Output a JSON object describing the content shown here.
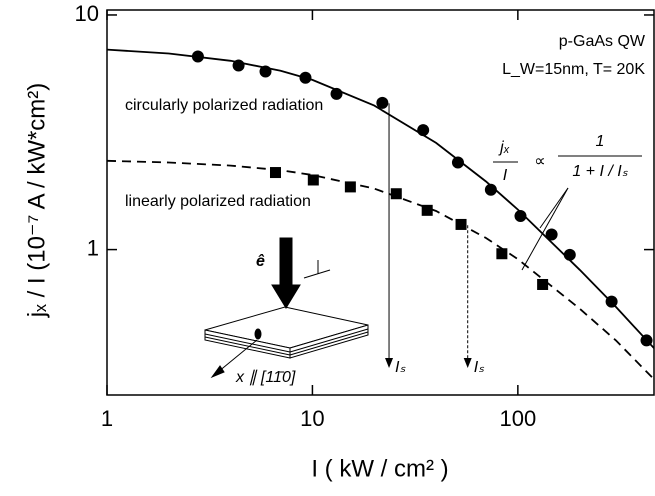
{
  "chart_data": {
    "type": "scatter",
    "log_x": true,
    "log_y": true,
    "xlabel": "I ( kW / cm² )",
    "ylabel": "jₓ / I  (10⁻⁷ A / kW*cm²)",
    "xlim": [
      1,
      460
    ],
    "ylim": [
      0.24,
      10.5
    ],
    "xticks": [
      1,
      10,
      100
    ],
    "yticks": [
      1,
      10
    ],
    "series": [
      {
        "name": "circularly polarized radiation",
        "color": "#000000",
        "marker": "circle",
        "x": [
          2.77,
          4.37,
          5.91,
          9.25,
          13.1,
          21.9,
          34.6,
          51.1,
          73.9,
          103,
          146,
          179,
          286,
          423
        ],
        "values": [
          6.65,
          6.09,
          5.74,
          5.4,
          4.61,
          4.22,
          3.23,
          2.35,
          1.8,
          1.39,
          1.16,
          0.95,
          0.6,
          0.41
        ]
      },
      {
        "name": "linearly polarized radiation",
        "color": "#000000",
        "marker": "square",
        "x": [
          6.61,
          10.1,
          15.3,
          25.6,
          36.2,
          52.9,
          83.6,
          132
        ],
        "values": [
          2.13,
          1.98,
          1.85,
          1.73,
          1.47,
          1.28,
          0.96,
          0.71
        ]
      },
      {
        "color": "#000000",
        "marker": "line",
        "dash": false,
        "x": [
          1,
          2,
          4,
          7,
          10,
          20,
          40,
          70,
          100,
          200,
          300,
          460
        ],
        "values": [
          7.12,
          6.85,
          6.38,
          5.78,
          5.29,
          4.11,
          2.85,
          1.95,
          1.48,
          0.82,
          0.57,
          0.38
        ]
      },
      {
        "color": "#000000",
        "marker": "line",
        "dash": true,
        "x": [
          1,
          2,
          4,
          7,
          10,
          20,
          40,
          70,
          100,
          200,
          300,
          460
        ],
        "values": [
          2.39,
          2.35,
          2.28,
          2.18,
          2.08,
          1.82,
          1.46,
          1.12,
          0.91,
          0.56,
          0.41,
          0.28
        ]
      }
    ],
    "arrows": [
      {
        "x": 23.6,
        "y": 4.2,
        "label": "Iₛ",
        "dash": false
      },
      {
        "x": 57,
        "y": 1.27,
        "label": "Iₛ",
        "dash": true
      }
    ],
    "sample": [
      "p-GaAs  QW",
      "L_W=15nm, T= 20K"
    ],
    "formula": {
      "lhs_num": "jₓ",
      "lhs_den": "I",
      "sym": "∝",
      "rhs_num": "1",
      "rhs_den": "1 + I / Iₛ"
    },
    "inset": {
      "e": "ê",
      "x": "x ∥ [11̄0]"
    }
  }
}
